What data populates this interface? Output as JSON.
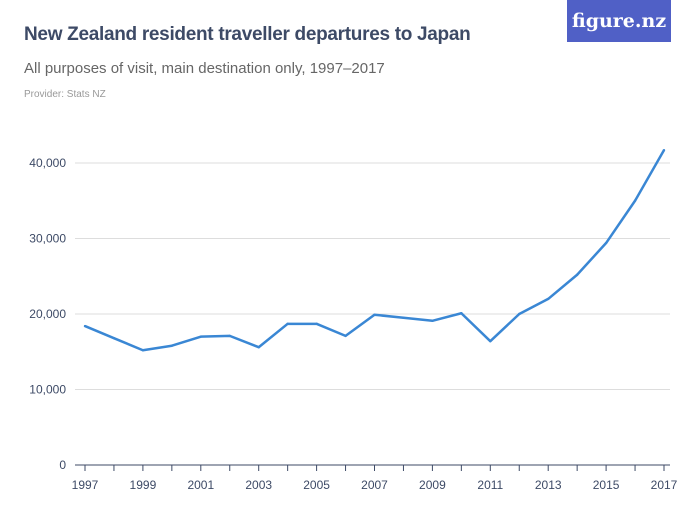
{
  "header": {
    "title": "New Zealand resident traveller departures to Japan",
    "subtitle": "All purposes of visit, main destination only, 1997–2017",
    "provider": "Provider: Stats NZ",
    "logo": "figure.nz"
  },
  "colors": {
    "line": "#3a87d4",
    "logo_bg": "#5060c6",
    "grid": "#dddddd"
  },
  "chart_data": {
    "type": "line",
    "title": "New Zealand resident traveller departures to Japan",
    "x": [
      1997,
      1998,
      1999,
      2000,
      2001,
      2002,
      2003,
      2004,
      2005,
      2006,
      2007,
      2008,
      2009,
      2010,
      2011,
      2012,
      2013,
      2014,
      2015,
      2016,
      2017
    ],
    "values": [
      18400,
      16800,
      15200,
      15800,
      17000,
      17100,
      15600,
      18700,
      18700,
      17100,
      19900,
      19500,
      19100,
      20100,
      16400,
      20000,
      22000,
      25200,
      29400,
      35000,
      41700
    ],
    "ylim": [
      0,
      40000
    ],
    "yticks": [
      {
        "v": 0,
        "label": "0"
      },
      {
        "v": 10000,
        "label": "10,000"
      },
      {
        "v": 20000,
        "label": "20,000"
      },
      {
        "v": 30000,
        "label": "30,000"
      },
      {
        "v": 40000,
        "label": "40,000"
      }
    ],
    "xticks": [
      "1997",
      "1999",
      "2001",
      "2003",
      "2005",
      "2007",
      "2009",
      "2011",
      "2013",
      "2015",
      "2017"
    ],
    "grid": true
  }
}
